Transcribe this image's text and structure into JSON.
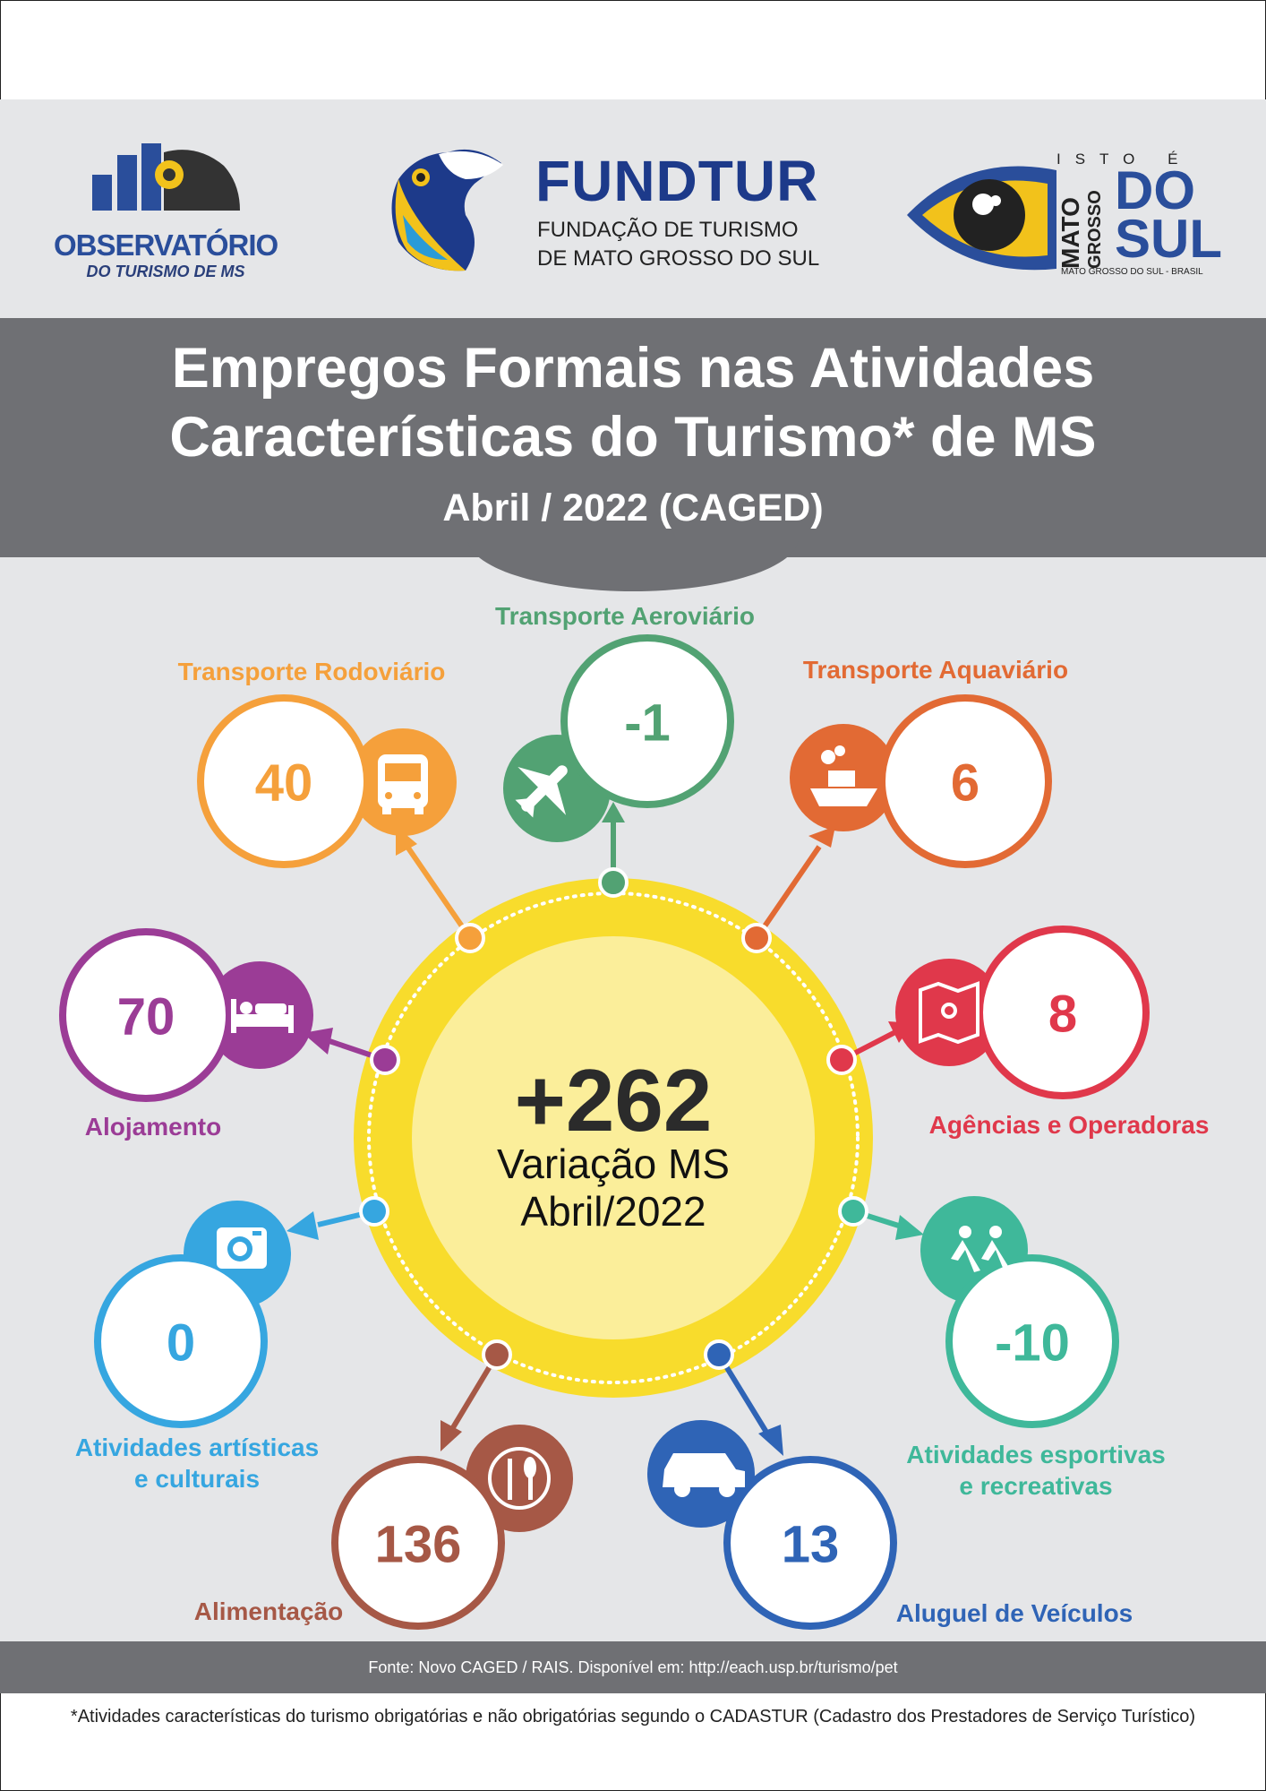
{
  "header": {
    "observatorio_name": "OBSERVATÓRIO",
    "observatorio_sub": "DO TURISMO DE MS",
    "fundtur_name": "FUNDTUR",
    "fundtur_line1": "FUNDAÇÃO DE TURISMO",
    "fundtur_line2": "DE MATO GROSSO DO SUL",
    "brand_isto": "ISTO É",
    "brand_mato": "MATO",
    "brand_grosso": "GROSSO",
    "brand_do": "DO",
    "brand_sul": "SUL",
    "brand_sub": "MATO GROSSO DO SUL - BRASIL"
  },
  "title": {
    "line1": "Empregos Formais nas Atividades",
    "line2": "Características do Turismo* de MS",
    "period": "Abril / 2022 (CAGED)"
  },
  "center": {
    "value": "+262",
    "caption1": "Variação MS",
    "caption2": "Abril/2022"
  },
  "activities": [
    {
      "label": "Transporte Aeroviário",
      "value": "-1",
      "color": "#52a273",
      "icon": "airplane-icon"
    },
    {
      "label": "Transporte Aquaviário",
      "value": "6",
      "color": "#e26a34",
      "icon": "ship-icon"
    },
    {
      "label": "Agências e Operadoras",
      "value": "8",
      "color": "#e0384b",
      "icon": "map-icon"
    },
    {
      "label": "Atividades esportivas",
      "label2": "e recreativas",
      "value": "-10",
      "color": "#3fb89a",
      "icon": "runners-icon"
    },
    {
      "label": "Aluguel de Veículos",
      "value": "13",
      "color": "#2f64b6",
      "icon": "car-icon"
    },
    {
      "label": "Alimentação",
      "value": "136",
      "color": "#a65846",
      "icon": "fork-knife-icon"
    },
    {
      "label": "Atividades artísticas",
      "label2": "e culturais",
      "value": "0",
      "color": "#36a6e0",
      "icon": "camera-icon"
    },
    {
      "label": "Alojamento",
      "value": "70",
      "color": "#9b3c96",
      "icon": "bed-icon"
    },
    {
      "label": "Transporte Rodoviário",
      "value": "40",
      "color": "#f5a03b",
      "icon": "bus-icon"
    }
  ],
  "footer": {
    "source": "Fonte: Novo CAGED / RAIS. Disponível em: http://each.usp.br/turismo/pet",
    "footnote": "*Atividades características do turismo obrigatórias e não obrigatórias segundo o CADASTUR (Cadastro dos Prestadores de Serviço Turístico)"
  },
  "colors": {
    "band_gray": "#6f7074",
    "background": "#e5e6e8",
    "sun_outer": "#f8dc2c",
    "sun_inner": "#fbee9a"
  }
}
